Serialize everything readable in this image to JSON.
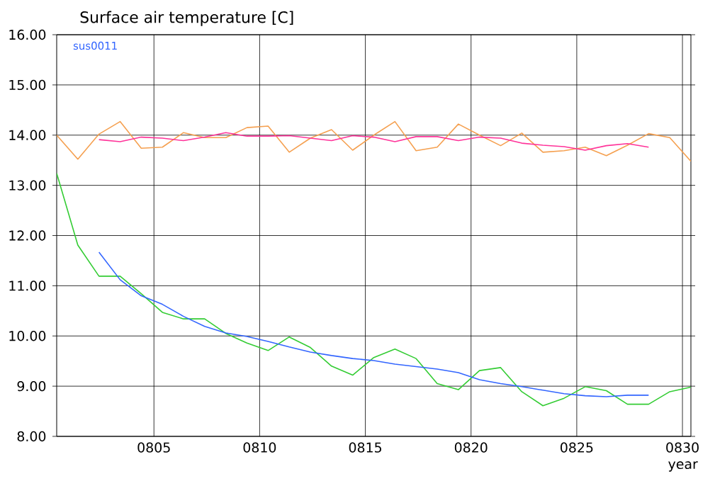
{
  "chart_data": {
    "type": "line",
    "title": "Surface air temperature [C]",
    "xlabel": "year",
    "xlim": [
      800.4,
      830.4
    ],
    "ylim": [
      8,
      16
    ],
    "xticks": [
      {
        "value": 805,
        "label": "0805"
      },
      {
        "value": 810,
        "label": "0810"
      },
      {
        "value": 815,
        "label": "0815"
      },
      {
        "value": 820,
        "label": "0820"
      },
      {
        "value": 825,
        "label": "0825"
      },
      {
        "value": 830,
        "label": "0830"
      }
    ],
    "yticks": [
      {
        "value": 8,
        "label": "8.00"
      },
      {
        "value": 9,
        "label": "9.00"
      },
      {
        "value": 10,
        "label": "10.00"
      },
      {
        "value": 11,
        "label": "11.00"
      },
      {
        "value": 12,
        "label": "12.00"
      },
      {
        "value": 13,
        "label": "13.00"
      },
      {
        "value": 14,
        "label": "14.00"
      },
      {
        "value": 15,
        "label": "15.00"
      },
      {
        "value": 16,
        "label": "16.00"
      }
    ],
    "grid": true,
    "legend": "top left",
    "marker": "none",
    "line_style": "solid",
    "series": [
      {
        "color": "#f5a050",
        "x": [
          800.4,
          801.4,
          802.4,
          803.4,
          804.4,
          805.4,
          806.4,
          807.4,
          808.4,
          809.4,
          810.4,
          811.4,
          812.4,
          813.4,
          814.4,
          815.4,
          816.4,
          817.4,
          818.4,
          819.4,
          820.4,
          821.4,
          822.4,
          823.4,
          824.4,
          825.4,
          826.4,
          827.4,
          828.4,
          829.4,
          830.4
        ],
        "values": [
          14.0,
          13.52,
          14.02,
          14.27,
          13.74,
          13.76,
          14.05,
          13.95,
          13.95,
          14.15,
          14.18,
          13.66,
          13.94,
          14.11,
          13.7,
          14.0,
          14.27,
          13.69,
          13.76,
          14.22,
          14.0,
          13.79,
          14.04,
          13.66,
          13.69,
          13.76,
          13.59,
          13.8,
          14.03,
          13.95,
          13.48
        ]
      },
      {
        "color": "#ff3399",
        "x": [
          802.4,
          803.4,
          804.4,
          805.4,
          806.4,
          807.4,
          808.4,
          809.4,
          810.4,
          811.4,
          812.4,
          813.4,
          814.4,
          815.4,
          816.4,
          817.4,
          818.4,
          819.4,
          820.4,
          821.4,
          822.4,
          823.4,
          824.4,
          825.4,
          826.4,
          827.4,
          828.4
        ],
        "values": [
          13.91,
          13.87,
          13.96,
          13.94,
          13.89,
          13.96,
          14.05,
          13.98,
          13.98,
          13.99,
          13.94,
          13.89,
          13.99,
          13.96,
          13.87,
          13.97,
          13.97,
          13.89,
          13.96,
          13.94,
          13.84,
          13.8,
          13.77,
          13.7,
          13.79,
          13.83,
          13.76
        ]
      },
      {
        "color": "#33cc33",
        "x": [
          800.4,
          801.4,
          802.4,
          803.4,
          804.4,
          805.4,
          806.4,
          807.4,
          808.4,
          809.4,
          810.4,
          811.4,
          812.4,
          813.4,
          814.4,
          815.4,
          816.4,
          817.4,
          818.4,
          819.4,
          820.4,
          821.4,
          822.4,
          823.4,
          824.4,
          825.4,
          826.4,
          827.4,
          828.4,
          829.4,
          830.4
        ],
        "values": [
          13.24,
          11.81,
          11.19,
          11.19,
          10.84,
          10.47,
          10.34,
          10.34,
          10.05,
          9.86,
          9.71,
          9.98,
          9.77,
          9.4,
          9.22,
          9.57,
          9.74,
          9.55,
          9.05,
          8.93,
          9.31,
          9.37,
          8.89,
          8.61,
          8.76,
          8.99,
          8.91,
          8.64,
          8.64,
          8.89,
          8.98
        ]
      },
      {
        "name": "sus0011",
        "color": "#3366ff",
        "x": [
          802.4,
          803.4,
          804.4,
          805.4,
          806.4,
          807.4,
          808.4,
          809.4,
          810.4,
          811.4,
          812.4,
          813.4,
          814.4,
          815.4,
          816.4,
          817.4,
          818.4,
          819.4,
          820.4,
          821.4,
          822.4,
          823.4,
          824.4,
          825.4,
          826.4,
          827.4,
          828.4
        ],
        "values": [
          11.67,
          11.12,
          10.8,
          10.63,
          10.39,
          10.19,
          10.06,
          9.99,
          9.89,
          9.78,
          9.68,
          9.61,
          9.55,
          9.51,
          9.44,
          9.39,
          9.34,
          9.27,
          9.13,
          9.05,
          8.99,
          8.92,
          8.85,
          8.81,
          8.79,
          8.82,
          8.82
        ]
      }
    ]
  }
}
